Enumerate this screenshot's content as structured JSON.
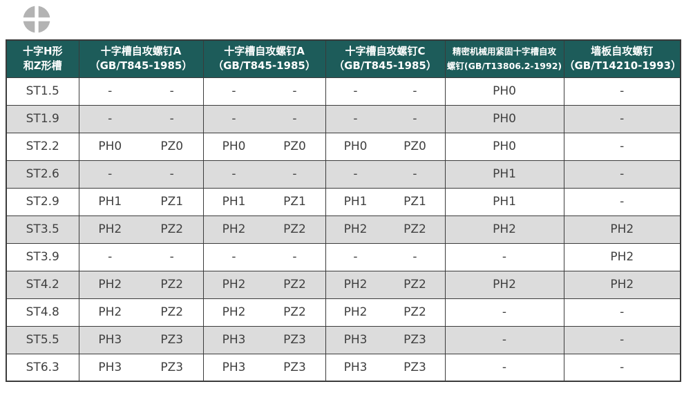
{
  "icon": {
    "name": "phillips-screw-head-icon",
    "circle_color": "#b3b3b3",
    "cross_color": "#ffffff"
  },
  "theme": {
    "header_bg": "#1d5c5a",
    "header_text": "#ffffff",
    "row_bg": "#ffffff",
    "row_alt_bg": "#dcdcdc",
    "border_color": "#3a3a3a",
    "cell_text": "#3f3f3f"
  },
  "table": {
    "columns": [
      {
        "label_lines": [
          "十字H形",
          "和Z形槽"
        ],
        "type": "single",
        "small": false
      },
      {
        "label_lines": [
          "十字槽自攻螺钉A",
          "（GB/T845-1985）"
        ],
        "type": "pair",
        "small": false
      },
      {
        "label_lines": [
          "十字槽自攻螺钉A",
          "（GB/T845-1985）"
        ],
        "type": "pair",
        "small": false
      },
      {
        "label_lines": [
          "十字槽自攻螺钉C",
          "（GB/T845-1985）"
        ],
        "type": "pair",
        "small": false
      },
      {
        "label_lines": [
          "精密机械用紧固十字槽自攻",
          "螺钉(GB/T13806.2-1992)"
        ],
        "type": "single",
        "small": true
      },
      {
        "label_lines": [
          "墙板自攻螺钉",
          "（GB/T14210-1993）"
        ],
        "type": "single",
        "small": false
      }
    ],
    "rows": [
      {
        "size": "ST1.5",
        "c2": [
          "-",
          "-"
        ],
        "c3": [
          "-",
          "-"
        ],
        "c4": [
          "-",
          "-"
        ],
        "c5": "PH0",
        "c6": "-"
      },
      {
        "size": "ST1.9",
        "c2": [
          "-",
          "-"
        ],
        "c3": [
          "-",
          "-"
        ],
        "c4": [
          "-",
          "-"
        ],
        "c5": "PH0",
        "c6": "-"
      },
      {
        "size": "ST2.2",
        "c2": [
          "PH0",
          "PZ0"
        ],
        "c3": [
          "PH0",
          "PZ0"
        ],
        "c4": [
          "PH0",
          "PZ0"
        ],
        "c5": "PH0",
        "c6": "-"
      },
      {
        "size": "ST2.6",
        "c2": [
          "-",
          "-"
        ],
        "c3": [
          "-",
          "-"
        ],
        "c4": [
          "-",
          "-"
        ],
        "c5": "PH1",
        "c6": "-"
      },
      {
        "size": "ST2.9",
        "c2": [
          "PH1",
          "PZ1"
        ],
        "c3": [
          "PH1",
          "PZ1"
        ],
        "c4": [
          "PH1",
          "PZ1"
        ],
        "c5": "PH1",
        "c6": "-"
      },
      {
        "size": "ST3.5",
        "c2": [
          "PH2",
          "PZ2"
        ],
        "c3": [
          "PH2",
          "PZ2"
        ],
        "c4": [
          "PH2",
          "PZ2"
        ],
        "c5": "PH2",
        "c6": "PH2"
      },
      {
        "size": "ST3.9",
        "c2": [
          "-",
          "-"
        ],
        "c3": [
          "-",
          "-"
        ],
        "c4": [
          "-",
          "-"
        ],
        "c5": "-",
        "c6": "PH2"
      },
      {
        "size": "ST4.2",
        "c2": [
          "PH2",
          "PZ2"
        ],
        "c3": [
          "PH2",
          "PZ2"
        ],
        "c4": [
          "PH2",
          "PZ2"
        ],
        "c5": "PH2",
        "c6": "PH2"
      },
      {
        "size": "ST4.8",
        "c2": [
          "PH2",
          "PZ2"
        ],
        "c3": [
          "PH2",
          "PZ2"
        ],
        "c4": [
          "PH2",
          "PZ2"
        ],
        "c5": "-",
        "c6": "-"
      },
      {
        "size": "ST5.5",
        "c2": [
          "PH3",
          "PZ3"
        ],
        "c3": [
          "PH3",
          "PZ3"
        ],
        "c4": [
          "PH3",
          "PZ3"
        ],
        "c5": "-",
        "c6": "-"
      },
      {
        "size": "ST6.3",
        "c2": [
          "PH3",
          "PZ3"
        ],
        "c3": [
          "PH3",
          "PZ3"
        ],
        "c4": [
          "PH3",
          "PZ3"
        ],
        "c5": "-",
        "c6": "-"
      }
    ]
  }
}
